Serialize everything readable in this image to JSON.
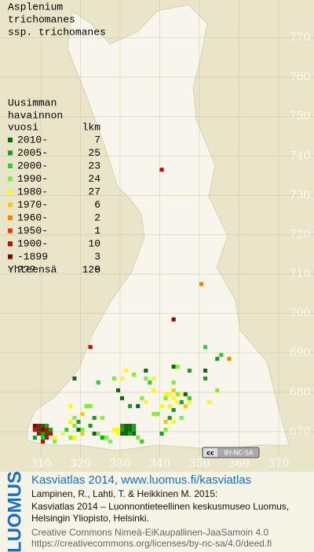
{
  "map": {
    "title": [
      "Asplenium",
      "trichomanes",
      "ssp. trichomanes"
    ],
    "legend_header": [
      "Uusimman",
      "havainnon",
      "vuosi",
      "lkm"
    ],
    "legend": [
      {
        "label": "2010-",
        "count": 7,
        "color": "#0b6b0b"
      },
      {
        "label": "2005-",
        "count": 25,
        "color": "#1f9a1f"
      },
      {
        "label": "2000-",
        "count": 23,
        "color": "#2fcf2f"
      },
      {
        "label": "1990-",
        "count": 24,
        "color": "#7cf03a"
      },
      {
        "label": "1980-",
        "count": 27,
        "color": "#ffff00"
      },
      {
        "label": "1970-",
        "count": 6,
        "color": "#ffc800"
      },
      {
        "label": "1960-",
        "count": 2,
        "color": "#ff8000"
      },
      {
        "label": "1950-",
        "count": 1,
        "color": "#ff3000"
      },
      {
        "label": "1900-",
        "count": 10,
        "color": "#d00000"
      },
      {
        "label": "-1899",
        "count": 3,
        "color": "#880000"
      },
      {
        "label": "???",
        "count": 0,
        "color": "#cccccc"
      }
    ],
    "total_label": "Yhteensä",
    "total": 128,
    "xticks": [
      310,
      320,
      330,
      340,
      350,
      360,
      370
    ],
    "yticks": [
      670,
      680,
      690,
      700,
      710,
      720,
      730,
      740,
      750,
      760,
      770
    ],
    "records": [
      [
        340,
        736,
        8
      ],
      [
        350,
        707,
        6
      ],
      [
        343,
        698,
        9
      ],
      [
        322,
        691,
        8
      ],
      [
        351,
        691,
        2
      ],
      [
        354,
        688,
        1
      ],
      [
        357,
        688,
        6
      ],
      [
        355,
        689,
        2
      ],
      [
        308,
        671,
        9
      ],
      [
        309,
        671,
        8
      ],
      [
        310,
        671,
        0
      ],
      [
        311,
        671,
        1
      ],
      [
        308,
        670,
        8
      ],
      [
        309,
        670,
        0
      ],
      [
        310,
        670,
        9
      ],
      [
        311,
        670,
        8
      ],
      [
        312,
        670,
        1
      ],
      [
        309,
        669,
        8
      ],
      [
        310,
        669,
        1
      ],
      [
        311,
        669,
        0
      ],
      [
        312,
        669,
        8
      ],
      [
        308,
        668,
        1
      ],
      [
        310,
        668,
        2
      ],
      [
        311,
        668,
        8
      ],
      [
        313,
        668,
        4
      ],
      [
        310,
        667,
        8
      ],
      [
        313,
        667,
        3
      ],
      [
        318,
        673,
        3
      ],
      [
        317,
        672,
        4
      ],
      [
        319,
        672,
        1
      ],
      [
        318,
        671,
        3
      ],
      [
        316,
        670,
        2
      ],
      [
        319,
        670,
        0
      ],
      [
        320,
        670,
        3
      ],
      [
        322,
        671,
        1
      ],
      [
        323,
        669,
        0
      ],
      [
        324,
        669,
        3
      ],
      [
        325,
        668,
        1
      ],
      [
        318,
        668,
        4
      ],
      [
        320,
        669,
        5
      ],
      [
        315,
        669,
        4
      ],
      [
        317,
        668,
        3
      ],
      [
        328,
        670,
        4
      ],
      [
        329,
        670,
        4
      ],
      [
        330,
        670,
        1
      ],
      [
        331,
        670,
        0
      ],
      [
        332,
        670,
        0
      ],
      [
        333,
        670,
        1
      ],
      [
        329,
        669,
        4
      ],
      [
        330,
        669,
        0
      ],
      [
        331,
        669,
        0
      ],
      [
        332,
        669,
        1
      ],
      [
        333,
        669,
        0
      ],
      [
        330,
        671,
        1
      ],
      [
        331,
        671,
        0
      ],
      [
        332,
        671,
        0
      ],
      [
        333,
        671,
        1
      ],
      [
        334,
        668,
        3
      ],
      [
        335,
        667,
        2
      ],
      [
        326,
        668,
        3
      ],
      [
        327,
        667,
        3
      ],
      [
        330,
        683,
        4
      ],
      [
        331,
        685,
        4
      ],
      [
        333,
        684,
        3
      ],
      [
        329,
        680,
        0
      ],
      [
        324,
        682,
        2
      ],
      [
        336,
        683,
        3
      ],
      [
        337,
        682,
        2
      ],
      [
        338,
        680,
        4
      ],
      [
        335,
        678,
        3
      ],
      [
        330,
        678,
        0
      ],
      [
        332,
        676,
        1
      ],
      [
        334,
        676,
        0
      ],
      [
        336,
        677,
        4
      ],
      [
        339,
        674,
        3
      ],
      [
        340,
        676,
        4
      ],
      [
        341,
        679,
        4
      ],
      [
        342,
        679,
        4
      ],
      [
        341,
        678,
        3
      ],
      [
        343,
        678,
        4
      ],
      [
        343,
        680,
        5
      ],
      [
        344,
        679,
        3
      ],
      [
        345,
        679,
        4
      ],
      [
        346,
        679,
        0
      ],
      [
        347,
        678,
        2
      ],
      [
        345,
        677,
        1
      ],
      [
        347,
        677,
        4
      ],
      [
        344,
        677,
        4
      ],
      [
        342,
        676,
        4
      ],
      [
        343,
        675,
        1
      ],
      [
        346,
        676,
        5
      ],
      [
        342,
        673,
        1
      ],
      [
        343,
        672,
        4
      ],
      [
        341,
        672,
        5
      ],
      [
        345,
        673,
        3
      ],
      [
        338,
        674,
        3
      ],
      [
        341,
        670,
        3
      ],
      [
        340,
        669,
        1
      ],
      [
        347,
        685,
        1
      ],
      [
        343,
        686,
        0
      ],
      [
        336,
        685,
        0
      ],
      [
        338,
        683,
        4
      ],
      [
        343,
        682,
        3
      ],
      [
        351,
        685,
        0
      ],
      [
        354,
        680,
        3
      ],
      [
        352,
        677,
        4
      ],
      [
        351,
        683,
        1
      ],
      [
        344,
        686,
        3
      ],
      [
        328,
        683,
        3
      ],
      [
        318,
        683,
        0
      ],
      [
        320,
        674,
        5
      ],
      [
        321,
        676,
        3
      ],
      [
        317,
        676,
        4
      ],
      [
        322,
        676,
        3
      ],
      [
        325,
        673,
        3
      ],
      [
        323,
        673,
        1
      ]
    ],
    "cc_badge": {
      "icon": "cc",
      "text": "BY-NC-SA"
    }
  },
  "footer": {
    "logo": "LUOMUS",
    "heading": "Kasviatlas 2014, www.luomus.fi/kasviatlas",
    "citation": [
      "Lampinen, R., Lahti, T. & Heikkinen M. 2015:",
      "Kasviatlas 2014 – Luonnontieteellinen keskusmuseo Luomus,",
      "Helsingin Yliopisto, Helsinki."
    ],
    "license": [
      "Creative Commons Nimeä-EiKaupallinen-JaaSamoin 4.0",
      "https://creativecommons.org/licenses/by-nc-sa/4.0/deed.fi"
    ]
  }
}
